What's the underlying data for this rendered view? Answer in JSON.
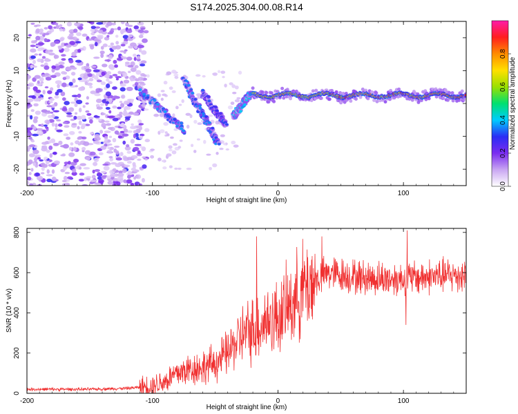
{
  "title": "S174.2025.304.00.08.R14",
  "colors": {
    "snr_line": "#f03030",
    "axis": "#000000",
    "background": "#ffffff"
  },
  "chart_data": [
    {
      "type": "heatmap",
      "name": "spectrogram",
      "xlabel": "Height of straight line (km)",
      "ylabel": "Frequency (Hz)",
      "xlim": [
        -200,
        150
      ],
      "ylim": [
        -25,
        25
      ],
      "xticks": [
        -200,
        -100,
        0,
        100
      ],
      "xtick_labels": [
        "-200",
        "-100",
        "0",
        "100"
      ],
      "yticks": [
        -20,
        -10,
        0,
        10,
        20
      ],
      "ytick_labels": [
        "-20",
        "-10",
        "0",
        "10",
        "20"
      ],
      "colorbar": {
        "label": "Normalized spectral amplitude",
        "range": [
          0,
          1
        ],
        "ticks": [
          0.0,
          0.2,
          0.4,
          0.6,
          0.8
        ],
        "tick_labels": [
          "0.0",
          "0.2",
          "0.4",
          "0.6",
          "0.8"
        ],
        "colormap": [
          "#ffffff",
          "#c9a6f2",
          "#7b2cf0",
          "#2a2df5",
          "#00ccff",
          "#00e070",
          "#9ae000",
          "#ffe000",
          "#ff8c00",
          "#ff1e1e",
          "#ff1aa8"
        ]
      },
      "features": {
        "noise_region_km": [
          -200,
          -105
        ],
        "diagonal_tracks": [
          {
            "from": [
              -110,
              4
            ],
            "to": [
              -75,
              -8
            ],
            "amplitude": 0.3
          },
          {
            "from": [
              -75,
              7
            ],
            "to": [
              -48,
              -12
            ],
            "amplitude": 0.3
          },
          {
            "from": [
              -60,
              3
            ],
            "to": [
              -42,
              -6
            ],
            "amplitude": 0.25
          },
          {
            "from": [
              -35,
              -4
            ],
            "to": [
              -22,
              3
            ],
            "amplitude": 0.35
          }
        ],
        "main_tone": {
          "from_km": -20,
          "to_km": 150,
          "frequency_hz": 2.5,
          "amplitude": 0.9
        }
      }
    },
    {
      "type": "line",
      "name": "snr",
      "xlabel": "Height of straight line (km)",
      "ylabel": "SNR (10 * v/v)",
      "xlim": [
        -200,
        150
      ],
      "ylim": [
        0,
        820
      ],
      "xticks": [
        -200,
        -100,
        0,
        100
      ],
      "xtick_labels": [
        "-200",
        "-100",
        "0",
        "100"
      ],
      "yticks": [
        0,
        200,
        400,
        600,
        800
      ],
      "ytick_labels": [
        "0",
        "200",
        "400",
        "600",
        "800"
      ],
      "series": [
        {
          "name": "SNR",
          "x": [
            -200,
            -150,
            -120,
            -110,
            -100,
            -90,
            -80,
            -70,
            -60,
            -50,
            -40,
            -30,
            -20,
            -10,
            0,
            10,
            20,
            30,
            40,
            60,
            80,
            100,
            120,
            150
          ],
          "values": [
            20,
            20,
            25,
            30,
            40,
            60,
            100,
            120,
            130,
            150,
            200,
            280,
            320,
            360,
            380,
            440,
            520,
            560,
            600,
            580,
            570,
            570,
            580,
            590
          ],
          "spikes": [
            {
              "x": -17,
              "value": 780
            },
            {
              "x": 35,
              "value": 780
            },
            {
              "x": 103,
              "value": 810
            },
            {
              "x": 102,
              "value": 340
            }
          ]
        }
      ]
    }
  ]
}
